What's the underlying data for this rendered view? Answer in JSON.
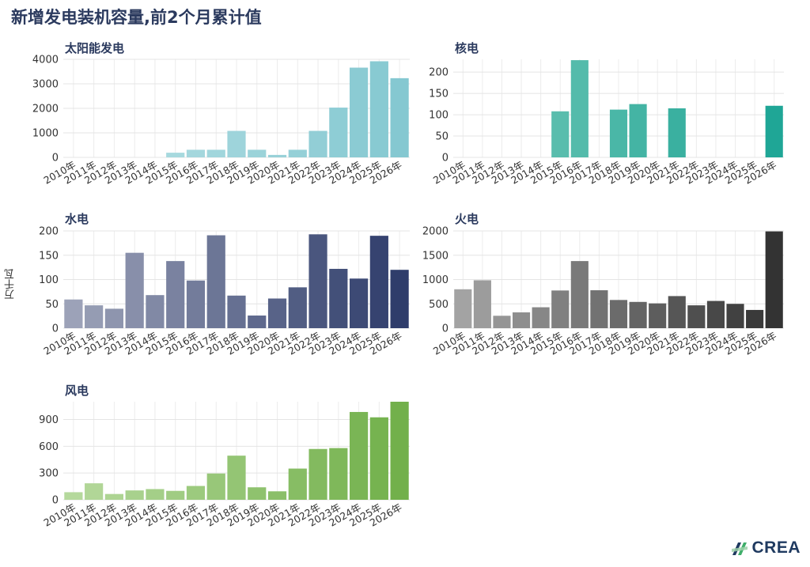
{
  "title": "新增发电装机容量,前2个月累计值",
  "y_axis_title": "万千瓦",
  "logo_text": "CREA",
  "chart_data": [
    {
      "type": "bar",
      "title": "太阳能发电",
      "categories": [
        "2010年",
        "2011年",
        "2012年",
        "2013年",
        "2014年",
        "2015年",
        "2016年",
        "2017年",
        "2018年",
        "2019年",
        "2020年",
        "2021年",
        "2022年",
        "2023年",
        "2024年",
        "2025年",
        "2026年"
      ],
      "values": [
        0,
        0,
        0,
        0,
        0,
        190,
        310,
        310,
        1080,
        310,
        100,
        310,
        1080,
        2030,
        3660,
        3920,
        3230
      ],
      "ylim": [
        0,
        4000
      ],
      "yticks": [
        0,
        1000,
        2000,
        3000,
        4000
      ],
      "color_start": "#b7e0e4",
      "color_end": "#85c8d1"
    },
    {
      "type": "bar",
      "title": "核电",
      "categories": [
        "2010年",
        "2011年",
        "2012年",
        "2013年",
        "2014年",
        "2015年",
        "2016年",
        "2017年",
        "2018年",
        "2019年",
        "2020年",
        "2021年",
        "2022年",
        "2023年",
        "2024年",
        "2025年",
        "2026年"
      ],
      "values": [
        0,
        0,
        0,
        0,
        0,
        108,
        228,
        0,
        112,
        125,
        0,
        115,
        0,
        0,
        0,
        0,
        121
      ],
      "ylim": [
        0,
        230
      ],
      "yticks": [
        0,
        50,
        100,
        150,
        200
      ],
      "color_start": "#74c7b7",
      "color_end": "#1fa696"
    },
    {
      "type": "bar",
      "title": "水电",
      "categories": [
        "2010年",
        "2011年",
        "2012年",
        "2013年",
        "2014年",
        "2015年",
        "2016年",
        "2017年",
        "2018年",
        "2019年",
        "2020年",
        "2021年",
        "2022年",
        "2023年",
        "2024年",
        "2025年",
        "2026年"
      ],
      "values": [
        59,
        47,
        40,
        155,
        68,
        138,
        98,
        191,
        67,
        26,
        61,
        84,
        193,
        122,
        102,
        190,
        120
      ],
      "ylim": [
        0,
        200
      ],
      "yticks": [
        0,
        50,
        100,
        150,
        200
      ],
      "color_start": "#9ca2b8",
      "color_end": "#2f3d6b"
    },
    {
      "type": "bar",
      "title": "火电",
      "categories": [
        "2010年",
        "2011年",
        "2012年",
        "2013年",
        "2014年",
        "2015年",
        "2016年",
        "2017年",
        "2018年",
        "2019年",
        "2020年",
        "2021年",
        "2022年",
        "2023年",
        "2024年",
        "2025年",
        "2026年"
      ],
      "values": [
        800,
        985,
        255,
        325,
        430,
        775,
        1380,
        780,
        580,
        540,
        510,
        660,
        470,
        560,
        500,
        375,
        1990
      ],
      "ylim": [
        0,
        2000
      ],
      "yticks": [
        0,
        500,
        1000,
        1500,
        2000
      ],
      "color_start": "#a3a3a3",
      "color_end": "#333333"
    },
    {
      "type": "bar",
      "title": "风电",
      "categories": [
        "2010年",
        "2011年",
        "2012年",
        "2013年",
        "2014年",
        "2015年",
        "2016年",
        "2017年",
        "2018年",
        "2019年",
        "2020年",
        "2021年",
        "2022年",
        "2023年",
        "2024年",
        "2025年",
        "2026年"
      ],
      "values": [
        85,
        185,
        65,
        105,
        120,
        100,
        155,
        295,
        495,
        140,
        95,
        350,
        570,
        580,
        985,
        925,
        1100
      ],
      "ylim": [
        0,
        1100
      ],
      "yticks": [
        0,
        300,
        600,
        900
      ],
      "color_start": "#b5d99c",
      "color_end": "#72b04b"
    }
  ]
}
